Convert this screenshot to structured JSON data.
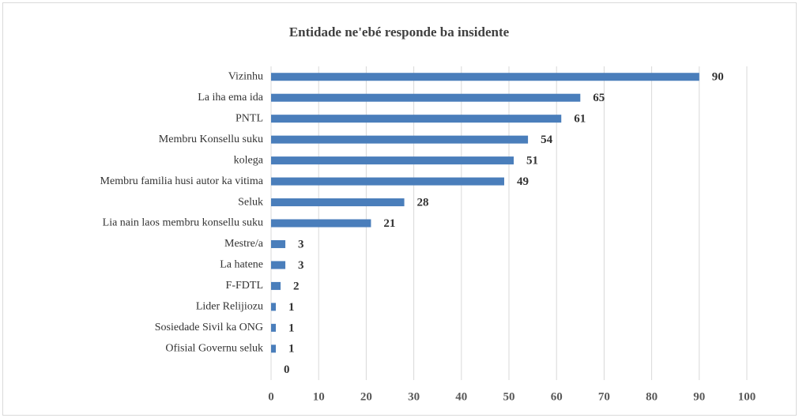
{
  "chart_data": {
    "type": "bar",
    "orientation": "horizontal",
    "title": "Entidade ne'ebé responde ba insidente",
    "categories": [
      "Vizinhu",
      "La iha ema ida",
      "PNTL",
      "Membru Konsellu suku",
      "kolega",
      "Membru familia husi autor ka vitima",
      "Seluk",
      "Lia nain laos membru konsellu suku",
      "Mestre/a",
      "La hatene",
      "F-FDTL",
      "Lider Relijiozu",
      "Sosiedade Sivil ka ONG",
      "Ofisial Governu seluk",
      null
    ],
    "values": [
      90,
      65,
      61,
      54,
      51,
      49,
      28,
      21,
      3,
      3,
      2,
      1,
      1,
      1,
      0
    ],
    "color": "#4a7ebb",
    "xlim": [
      0,
      100
    ],
    "xticks": [
      0,
      10,
      20,
      30,
      40,
      50,
      60,
      70,
      80,
      90,
      100
    ],
    "grid": true
  }
}
